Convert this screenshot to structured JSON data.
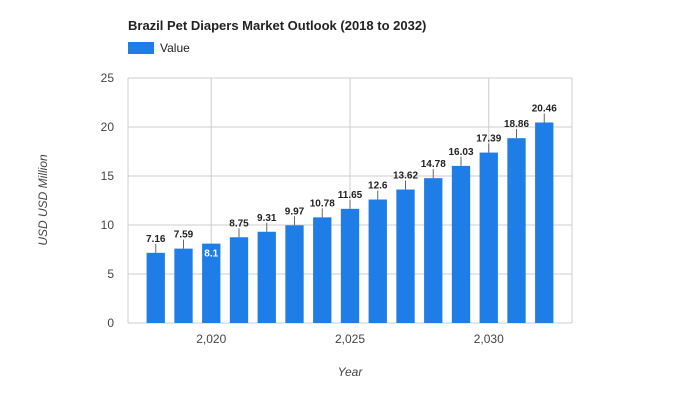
{
  "chart_data": {
    "type": "bar",
    "title": "Brazil Pet Diapers Market Outlook (2018 to 2032)",
    "xlabel": "Year",
    "ylabel": "USD USD Million",
    "legend": {
      "label": "Value",
      "placement": "top-left"
    },
    "series": [
      {
        "name": "Value",
        "x": [
          2018,
          2019,
          2020,
          2021,
          2022,
          2023,
          2024,
          2025,
          2026,
          2027,
          2028,
          2029,
          2030,
          2031,
          2032
        ],
        "values": [
          7.16,
          7.59,
          8.1,
          8.75,
          9.31,
          9.97,
          10.78,
          11.65,
          12.6,
          13.62,
          14.78,
          16.03,
          17.39,
          18.86,
          20.46
        ],
        "labels": [
          "7.16",
          "7.59",
          "8.1",
          "8.75",
          "9.31",
          "9.97",
          "10.78",
          "11.65",
          "12.6",
          "13.62",
          "14.78",
          "16.03",
          "17.39",
          "18.86",
          "20.46"
        ]
      }
    ],
    "ylim": [
      0,
      25
    ],
    "yticks": [
      0,
      5,
      10,
      15,
      20,
      25
    ],
    "xlim": [
      2017,
      2033
    ],
    "xticks": [
      2020,
      2025,
      2030
    ],
    "xtick_labels": [
      "2,020",
      "2,025",
      "2,030"
    ],
    "grid": true,
    "colors": {
      "bar": "#1f7de8",
      "grid": "#cccccc",
      "label_inside": "#ffffff",
      "label": "#222222"
    }
  }
}
